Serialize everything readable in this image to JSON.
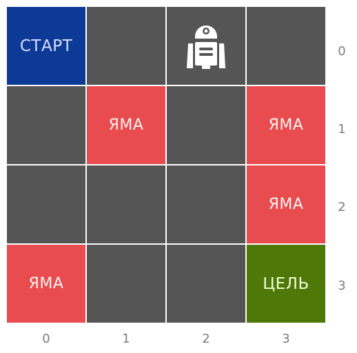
{
  "grid": {
    "rows": 4,
    "cols": 4,
    "cells": [
      {
        "row": 0,
        "col": 0,
        "type": "start",
        "label": "СТАРТ"
      },
      {
        "row": 0,
        "col": 1,
        "type": "empty",
        "label": ""
      },
      {
        "row": 0,
        "col": 2,
        "type": "agent",
        "label": "",
        "icon": "robot-icon"
      },
      {
        "row": 0,
        "col": 3,
        "type": "empty",
        "label": ""
      },
      {
        "row": 1,
        "col": 0,
        "type": "empty",
        "label": ""
      },
      {
        "row": 1,
        "col": 1,
        "type": "hole",
        "label": "ЯМА"
      },
      {
        "row": 1,
        "col": 2,
        "type": "empty",
        "label": ""
      },
      {
        "row": 1,
        "col": 3,
        "type": "hole",
        "label": "ЯМА"
      },
      {
        "row": 2,
        "col": 0,
        "type": "empty",
        "label": ""
      },
      {
        "row": 2,
        "col": 1,
        "type": "empty",
        "label": ""
      },
      {
        "row": 2,
        "col": 2,
        "type": "empty",
        "label": ""
      },
      {
        "row": 2,
        "col": 3,
        "type": "hole",
        "label": "ЯМА"
      },
      {
        "row": 3,
        "col": 0,
        "type": "hole",
        "label": "ЯМА"
      },
      {
        "row": 3,
        "col": 1,
        "type": "empty",
        "label": ""
      },
      {
        "row": 3,
        "col": 2,
        "type": "empty",
        "label": ""
      },
      {
        "row": 3,
        "col": 3,
        "type": "goal",
        "label": "ЦЕЛЬ"
      }
    ]
  },
  "axes": {
    "row_labels": [
      "0",
      "1",
      "2",
      "3"
    ],
    "col_labels": [
      "0",
      "1",
      "2",
      "3"
    ]
  },
  "colors": {
    "empty": "#555555",
    "start": "#0e3a97",
    "hole": "#e84c4e",
    "goal": "#4e7808",
    "axis_text": "#7b7b7b"
  }
}
